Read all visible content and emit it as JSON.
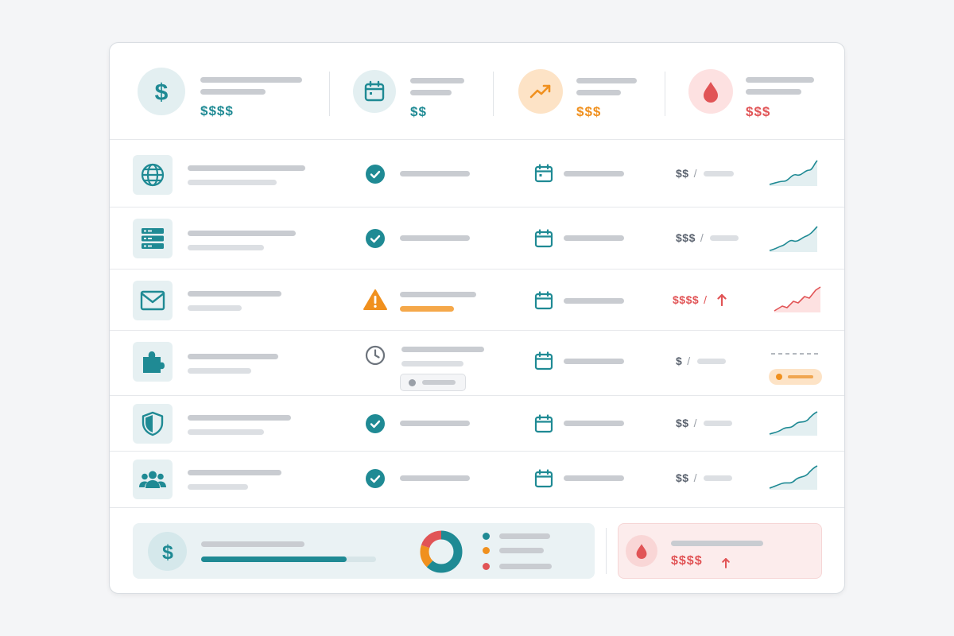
{
  "summary": [
    {
      "icon": "dollar-icon",
      "value": "$$$$",
      "color": "#1f8a94"
    },
    {
      "icon": "calendar-icon",
      "value": "$$",
      "color": "#1f8a94"
    },
    {
      "icon": "trending-up-icon",
      "value": "$$$",
      "color": "#f0901e"
    },
    {
      "icon": "drop-icon",
      "value": "$$$",
      "color": "#e15456"
    }
  ],
  "rows": [
    {
      "icon": "globe-icon",
      "status": "ok",
      "cost": "$$",
      "trend": "up"
    },
    {
      "icon": "server-icon",
      "status": "ok",
      "cost": "$$$",
      "trend": "up"
    },
    {
      "icon": "mail-icon",
      "status": "warning",
      "cost": "$$$$",
      "trend": "spike"
    },
    {
      "icon": "puzzle-icon",
      "status": "pending",
      "cost": "$",
      "trend": "none"
    },
    {
      "icon": "shield-icon",
      "status": "ok",
      "cost": "$$",
      "trend": "up"
    },
    {
      "icon": "users-icon",
      "status": "ok",
      "cost": "$$",
      "trend": "up"
    }
  ],
  "cost_separator": "/",
  "footer": {
    "budget_progress": 0.83,
    "donut_segments": [
      {
        "color": "#1f8a94",
        "fraction": 0.62
      },
      {
        "color": "#f0901e",
        "fraction": 0.18
      },
      {
        "color": "#e15456",
        "fraction": 0.2
      }
    ],
    "alert_value": "$$$$"
  },
  "colors": {
    "accent": "#1f8a94",
    "warning": "#f0901e",
    "danger": "#e15456"
  }
}
